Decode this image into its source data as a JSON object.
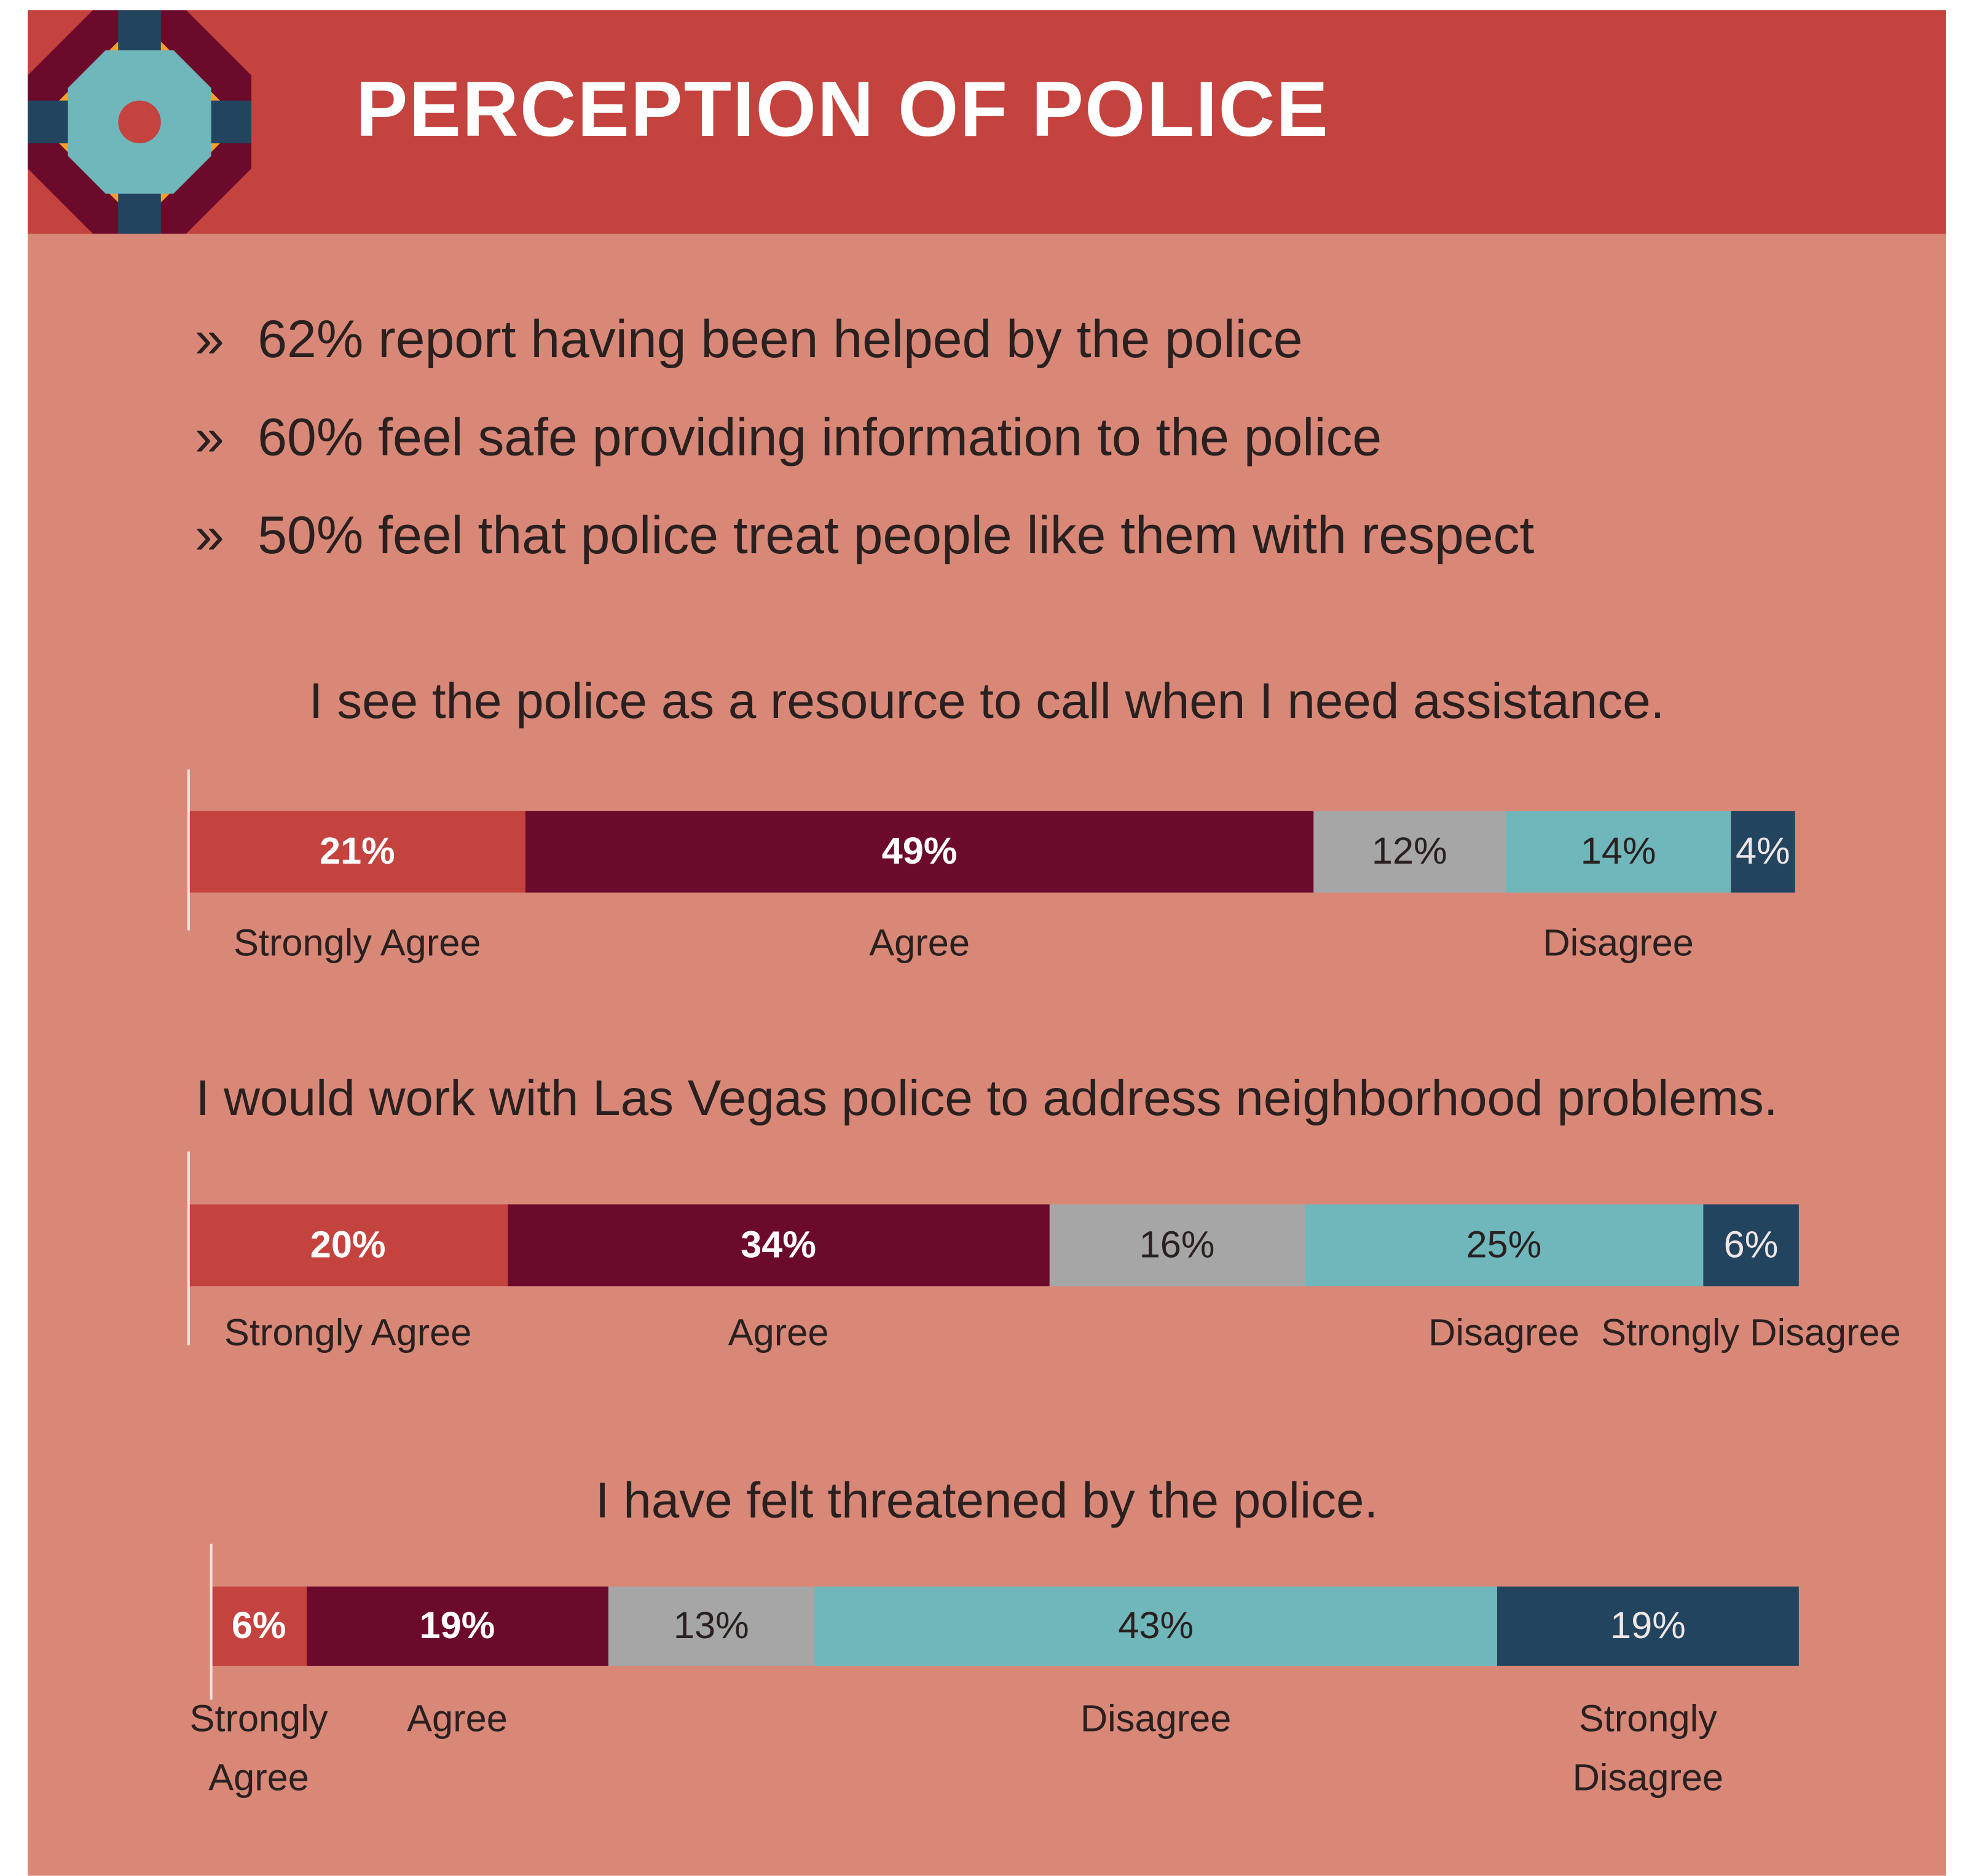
{
  "title": "PERCEPTION OF POLICE",
  "bullets": [
    "62% report having been helped by the police",
    "60% feel safe providing information to the police",
    "50% feel that police treat people like them with respect"
  ],
  "bullet_marker": "»",
  "chart_data": [
    {
      "type": "stacked_bar",
      "title": "I see the police as a resource to call when I need assistance.",
      "series": [
        {
          "name": "Strongly Agree",
          "color": "#c4433e",
          "label_color": "#ffffff",
          "label_bold": true,
          "values": [
            21
          ],
          "value_labels": [
            "21%"
          ]
        },
        {
          "name": "Agree",
          "color": "#6b0a2b",
          "label_color": "#ffffff",
          "label_bold": true,
          "values": [
            49
          ],
          "value_labels": [
            "49%"
          ]
        },
        {
          "name": null,
          "color": "#a6a6a6",
          "label_color": "#2a2020",
          "label_bold": false,
          "values": [
            12
          ],
          "value_labels": [
            "12%"
          ]
        },
        {
          "name": "Disagree",
          "color": "#6fb7bb",
          "label_color": "#2a2020",
          "label_bold": false,
          "values": [
            14
          ],
          "value_labels": [
            "14%"
          ]
        },
        {
          "name": null,
          "color": "#23445f",
          "label_color": "#f0e6e6",
          "label_bold": false,
          "values": [
            4
          ],
          "value_labels": [
            "4%"
          ]
        }
      ]
    },
    {
      "type": "stacked_bar",
      "title": "I would work with Las Vegas police to address neighborhood problems.",
      "series": [
        {
          "name": "Strongly Agree",
          "color": "#c4433e",
          "label_color": "#ffffff",
          "label_bold": true,
          "values": [
            20
          ],
          "value_labels": [
            "20%"
          ]
        },
        {
          "name": "Agree",
          "color": "#6b0a2b",
          "label_color": "#ffffff",
          "label_bold": true,
          "values": [
            34
          ],
          "value_labels": [
            "34%"
          ]
        },
        {
          "name": null,
          "color": "#a6a6a6",
          "label_color": "#2a2020",
          "label_bold": false,
          "values": [
            16
          ],
          "value_labels": [
            "16%"
          ]
        },
        {
          "name": "Disagree",
          "color": "#6fb7bb",
          "label_color": "#2a2020",
          "label_bold": false,
          "values": [
            25
          ],
          "value_labels": [
            "25%"
          ]
        },
        {
          "name": "Strongly Disagree",
          "color": "#23445f",
          "label_color": "#f0e6e6",
          "label_bold": false,
          "values": [
            6
          ],
          "value_labels": [
            "6%"
          ]
        }
      ]
    },
    {
      "type": "stacked_bar",
      "title": "I have felt threatened by the police.",
      "series": [
        {
          "name": "Strongly Agree",
          "color": "#c4433e",
          "label_color": "#ffffff",
          "label_bold": true,
          "values": [
            6
          ],
          "value_labels": [
            "6%"
          ]
        },
        {
          "name": "Agree",
          "color": "#6b0a2b",
          "label_color": "#ffffff",
          "label_bold": true,
          "values": [
            19
          ],
          "value_labels": [
            "19%"
          ]
        },
        {
          "name": null,
          "color": "#a6a6a6",
          "label_color": "#2a2020",
          "label_bold": false,
          "values": [
            13
          ],
          "value_labels": [
            "13%"
          ]
        },
        {
          "name": "Disagree",
          "color": "#6fb7bb",
          "label_color": "#2a2020",
          "label_bold": false,
          "values": [
            43
          ],
          "value_labels": [
            "43%"
          ]
        },
        {
          "name": "Strongly Disagree",
          "color": "#23445f",
          "label_color": "#f0e6e6",
          "label_bold": false,
          "values": [
            19
          ],
          "value_labels": [
            "19%"
          ]
        }
      ]
    }
  ]
}
